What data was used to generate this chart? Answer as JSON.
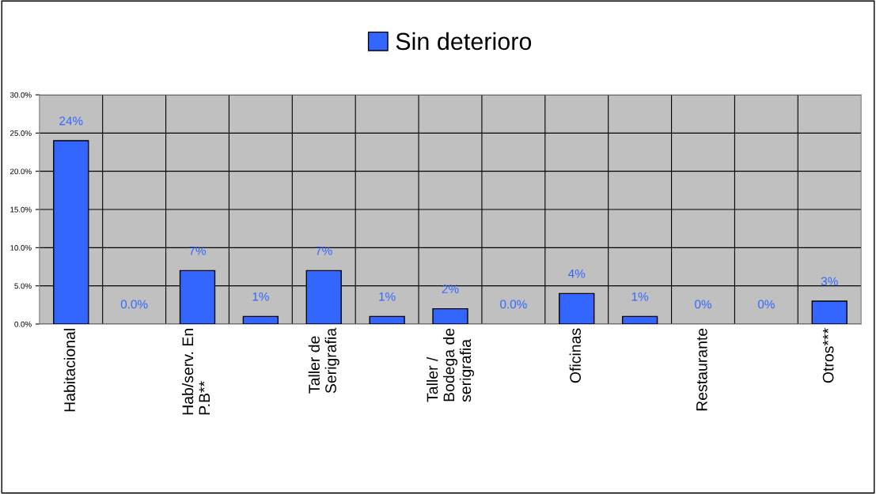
{
  "chart_data": {
    "type": "bar",
    "categories": [
      "Habitacional",
      null,
      "Hab/serv. En P.B**",
      null,
      "Taller de Serigrafia",
      null,
      "Taller / Bodega de serigrafia",
      null,
      "Oficinas",
      null,
      "Restaurante",
      null,
      "Otros***"
    ],
    "series": [
      {
        "name": "Sin deterioro",
        "color": "#3366ff",
        "values": [
          24,
          0,
          7,
          1,
          7,
          1,
          2,
          0,
          4,
          1,
          0,
          0,
          3
        ],
        "value_labels": [
          "24%",
          "0.0%",
          "7%",
          "1%",
          "7%",
          "1%",
          "2%",
          "0.0%",
          "4%",
          "1%",
          "0%",
          "0%",
          "3%"
        ]
      }
    ],
    "ylim": [
      0,
      30
    ],
    "yticks": [
      {
        "value": 0,
        "label": "0.0%"
      },
      {
        "value": 5,
        "label": "5.0%"
      },
      {
        "value": 10,
        "label": "10.0%"
      },
      {
        "value": 15,
        "label": "15.0%"
      },
      {
        "value": 20,
        "label": "20.0%"
      },
      {
        "value": 25,
        "label": "25.0%"
      },
      {
        "value": 30,
        "label": "30.0%"
      }
    ],
    "grid": true,
    "legend": "top"
  }
}
